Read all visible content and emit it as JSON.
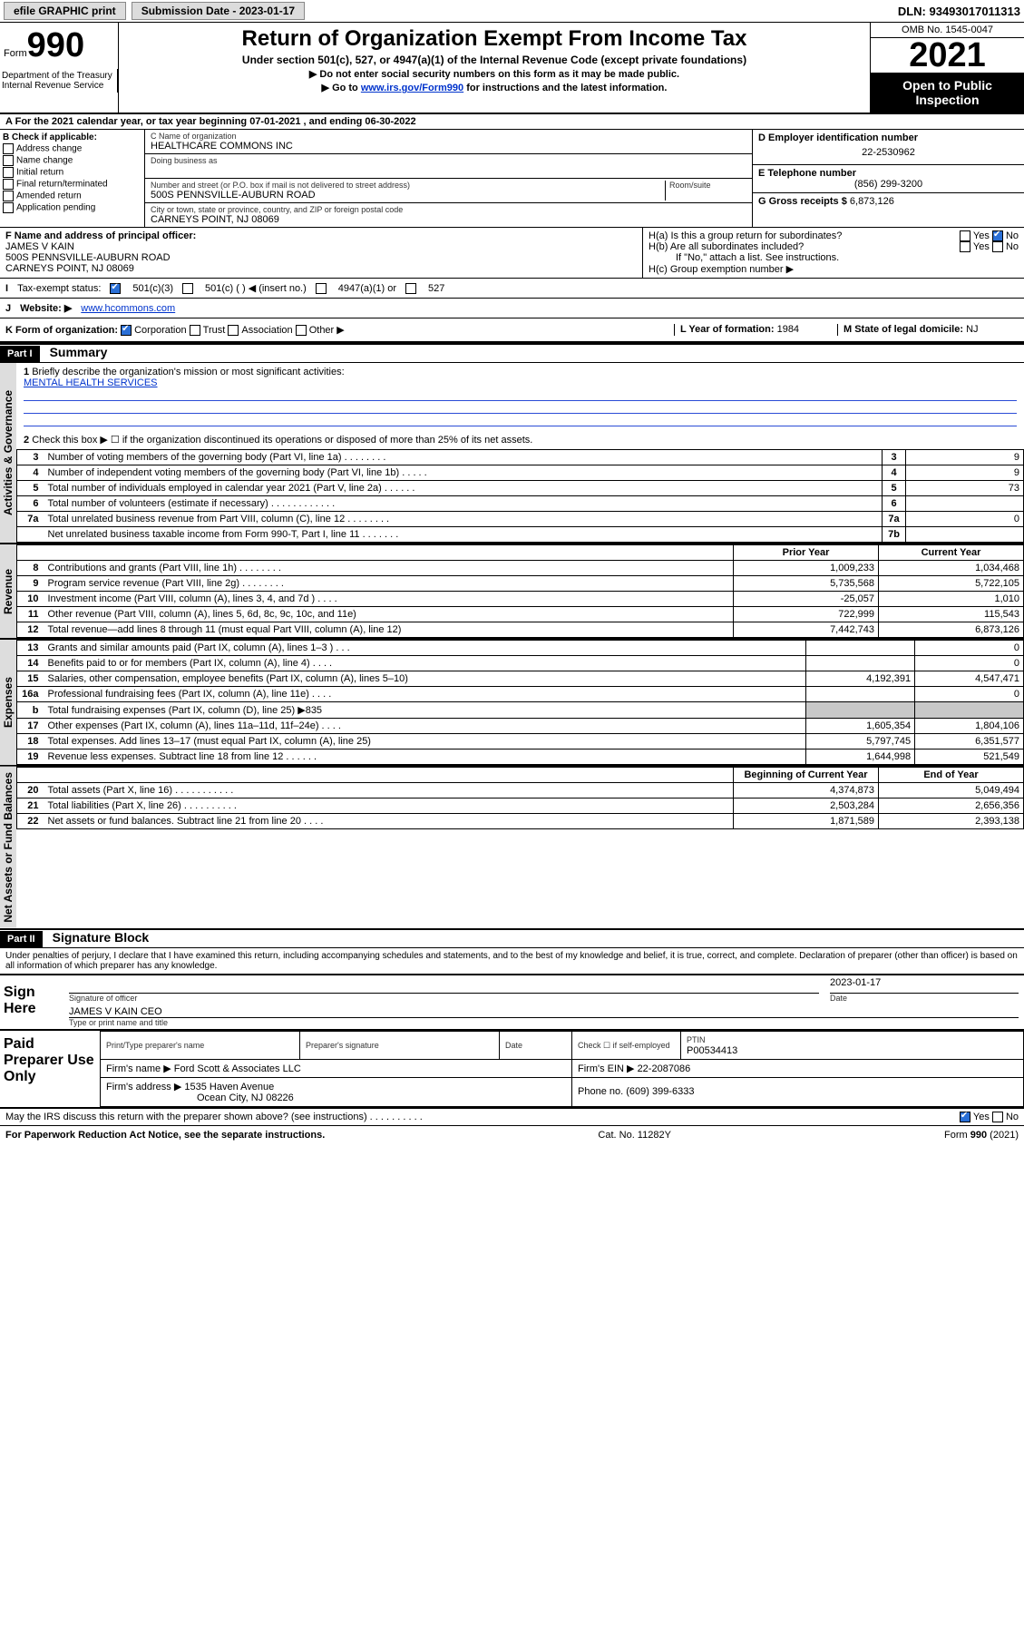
{
  "topbar": {
    "efile": "efile GRAPHIC print",
    "submission_label": "Submission Date - 2023-01-17",
    "dln": "DLN: 93493017011313"
  },
  "header": {
    "form_prefix": "Form",
    "form_number": "990",
    "title": "Return of Organization Exempt From Income Tax",
    "sub1": "Under section 501(c), 527, or 4947(a)(1) of the Internal Revenue Code (except private foundations)",
    "sub2": "▶ Do not enter social security numbers on this form as it may be made public.",
    "sub3_pre": "▶ Go to ",
    "sub3_link": "www.irs.gov/Form990",
    "sub3_post": " for instructions and the latest information.",
    "omb": "OMB No. 1545-0047",
    "year": "2021",
    "open_public": "Open to Public Inspection",
    "dept1": "Department of the Treasury",
    "dept2": "Internal Revenue Service"
  },
  "sectionA": {
    "line": "For the 2021 calendar year, or tax year beginning 07-01-2021   , and ending 06-30-2022"
  },
  "sectionB": {
    "label": "B Check if applicable:",
    "opts": [
      "Address change",
      "Name change",
      "Initial return",
      "Final return/terminated",
      "Amended return",
      "Application pending"
    ]
  },
  "sectionC": {
    "name_label": "C Name of organization",
    "name": "HEALTHCARE COMMONS INC",
    "dba_label": "Doing business as",
    "addr_label": "Number and street (or P.O. box if mail is not delivered to street address)",
    "room_label": "Room/suite",
    "addr": "500S PENNSVILLE-AUBURN ROAD",
    "city_label": "City or town, state or province, country, and ZIP or foreign postal code",
    "city": "CARNEYS POINT, NJ  08069"
  },
  "sectionD": {
    "label": "D Employer identification number",
    "value": "22-2530962"
  },
  "sectionE": {
    "label": "E Telephone number",
    "value": "(856) 299-3200"
  },
  "sectionG": {
    "label": "G Gross receipts $",
    "value": "6,873,126"
  },
  "sectionF": {
    "label": "F  Name and address of principal officer:",
    "name": "JAMES V KAIN",
    "addr": "500S PENNSVILLE-AUBURN ROAD",
    "city": "CARNEYS POINT, NJ  08069"
  },
  "sectionH": {
    "a": "H(a)  Is this a group return for subordinates?",
    "b": "H(b)  Are all subordinates included?",
    "b_note": "If \"No,\" attach a list. See instructions.",
    "c": "H(c)  Group exemption number ▶"
  },
  "sectionI": {
    "label": "Tax-exempt status:",
    "opt1": "501(c)(3)",
    "opt2": "501(c) (  ) ◀ (insert no.)",
    "opt3": "4947(a)(1) or",
    "opt4": "527"
  },
  "sectionJ": {
    "label": "Website: ▶",
    "value": "www.hcommons.com"
  },
  "sectionK": {
    "label": "K Form of organization:",
    "opts": [
      "Corporation",
      "Trust",
      "Association",
      "Other ▶"
    ]
  },
  "sectionL": {
    "label": "L Year of formation:",
    "value": "1984"
  },
  "sectionM": {
    "label": "M State of legal domicile:",
    "value": "NJ"
  },
  "part1": {
    "hdr": "Part I",
    "title": "Summary",
    "q1": "Briefly describe the organization's mission or most significant activities:",
    "mission": "MENTAL HEALTH SERVICES",
    "q2": "Check this box ▶ ☐  if the organization discontinued its operations or disposed of more than 25% of its net assets.",
    "prior_hdr": "Prior Year",
    "current_hdr": "Current Year",
    "boy_hdr": "Beginning of Current Year",
    "eoy_hdr": "End of Year",
    "vert_gov": "Activities & Governance",
    "vert_rev": "Revenue",
    "vert_exp": "Expenses",
    "vert_net": "Net Assets or Fund Balances",
    "rows_gov": [
      {
        "n": "3",
        "desc": "Number of voting members of the governing body (Part VI, line 1a)   .    .    .    .    .    .    .    .",
        "box": "3",
        "v": "9"
      },
      {
        "n": "4",
        "desc": "Number of independent voting members of the governing body (Part VI, line 1b)    .    .    .    .    .",
        "box": "4",
        "v": "9"
      },
      {
        "n": "5",
        "desc": "Total number of individuals employed in calendar year 2021 (Part V, line 2a)    .    .    .    .    .    .",
        "box": "5",
        "v": "73"
      },
      {
        "n": "6",
        "desc": "Total number of volunteers (estimate if necessary)    .    .    .    .    .    .    .    .    .    .    .    .",
        "box": "6",
        "v": ""
      },
      {
        "n": "7a",
        "desc": "Total unrelated business revenue from Part VIII, column (C), line 12   .    .    .    .    .    .    .    .",
        "box": "7a",
        "v": "0"
      },
      {
        "n": "",
        "desc": "Net unrelated business taxable income from Form 990-T, Part I, line 11    .    .    .    .    .    .    .",
        "box": "7b",
        "v": ""
      }
    ],
    "rows_rev": [
      {
        "n": "8",
        "desc": "Contributions and grants (Part VIII, line 1h)    .    .    .    .    .    .    .    .",
        "p": "1,009,233",
        "c": "1,034,468"
      },
      {
        "n": "9",
        "desc": "Program service revenue (Part VIII, line 2g)    .    .    .    .    .    .    .    .",
        "p": "5,735,568",
        "c": "5,722,105"
      },
      {
        "n": "10",
        "desc": "Investment income (Part VIII, column (A), lines 3, 4, and 7d )    .    .    .    .",
        "p": "-25,057",
        "c": "1,010"
      },
      {
        "n": "11",
        "desc": "Other revenue (Part VIII, column (A), lines 5, 6d, 8c, 9c, 10c, and 11e)",
        "p": "722,999",
        "c": "115,543"
      },
      {
        "n": "12",
        "desc": "Total revenue—add lines 8 through 11 (must equal Part VIII, column (A), line 12)",
        "p": "7,442,743",
        "c": "6,873,126"
      }
    ],
    "rows_exp": [
      {
        "n": "13",
        "desc": "Grants and similar amounts paid (Part IX, column (A), lines 1–3 )   .    .    .",
        "p": "",
        "c": "0"
      },
      {
        "n": "14",
        "desc": "Benefits paid to or for members (Part IX, column (A), line 4)   .    .    .    .",
        "p": "",
        "c": "0"
      },
      {
        "n": "15",
        "desc": "Salaries, other compensation, employee benefits (Part IX, column (A), lines 5–10)",
        "p": "4,192,391",
        "c": "4,547,471"
      },
      {
        "n": "16a",
        "desc": "Professional fundraising fees (Part IX, column (A), line 11e)    .    .    .    .",
        "p": "",
        "c": "0"
      },
      {
        "n": "b",
        "desc": "Total fundraising expenses (Part IX, column (D), line 25) ▶835",
        "p": "grey",
        "c": "grey"
      },
      {
        "n": "17",
        "desc": "Other expenses (Part IX, column (A), lines 11a–11d, 11f–24e)   .    .    .    .",
        "p": "1,605,354",
        "c": "1,804,106"
      },
      {
        "n": "18",
        "desc": "Total expenses. Add lines 13–17 (must equal Part IX, column (A), line 25)",
        "p": "5,797,745",
        "c": "6,351,577"
      },
      {
        "n": "19",
        "desc": "Revenue less expenses. Subtract line 18 from line 12   .    .    .    .    .    .",
        "p": "1,644,998",
        "c": "521,549"
      }
    ],
    "rows_net": [
      {
        "n": "20",
        "desc": "Total assets (Part X, line 16)   .    .    .    .    .    .    .    .    .    .    .",
        "p": "4,374,873",
        "c": "5,049,494"
      },
      {
        "n": "21",
        "desc": "Total liabilities (Part X, line 26)   .    .    .    .    .    .    .    .    .    .",
        "p": "2,503,284",
        "c": "2,656,356"
      },
      {
        "n": "22",
        "desc": "Net assets or fund balances. Subtract line 21 from line 20   .    .    .    .",
        "p": "1,871,589",
        "c": "2,393,138"
      }
    ]
  },
  "part2": {
    "hdr": "Part II",
    "title": "Signature Block",
    "decl": "Under penalties of perjury, I declare that I have examined this return, including accompanying schedules and statements, and to the best of my knowledge and belief, it is true, correct, and complete. Declaration of preparer (other than officer) is based on all information of which preparer has any knowledge."
  },
  "sign": {
    "here": "Sign Here",
    "sig_label": "Signature of officer",
    "date_label": "Date",
    "date": "2023-01-17",
    "name": "JAMES V KAIN CEO",
    "name_label": "Type or print name and title"
  },
  "paid": {
    "title": "Paid Preparer Use Only",
    "c1": "Print/Type preparer's name",
    "c2": "Preparer's signature",
    "c3": "Date",
    "c4a": "Check ☐ if self-employed",
    "c4b_label": "PTIN",
    "c4b": "P00534413",
    "firm_label": "Firm's name    ▶",
    "firm": "Ford Scott & Associates LLC",
    "ein_label": "Firm's EIN ▶",
    "ein": "22-2087086",
    "addr_label": "Firm's address ▶",
    "addr1": "1535 Haven Avenue",
    "addr2": "Ocean City, NJ  08226",
    "phone_label": "Phone no.",
    "phone": "(609) 399-6333"
  },
  "footer": {
    "q": "May the IRS discuss this return with the preparer shown above? (see instructions)    .    .    .    .    .    .    .    .    .    .",
    "pra": "For Paperwork Reduction Act Notice, see the separate instructions.",
    "cat": "Cat. No. 11282Y",
    "form": "Form 990 (2021)"
  },
  "yesno": {
    "yes": "Yes",
    "no": "No"
  }
}
